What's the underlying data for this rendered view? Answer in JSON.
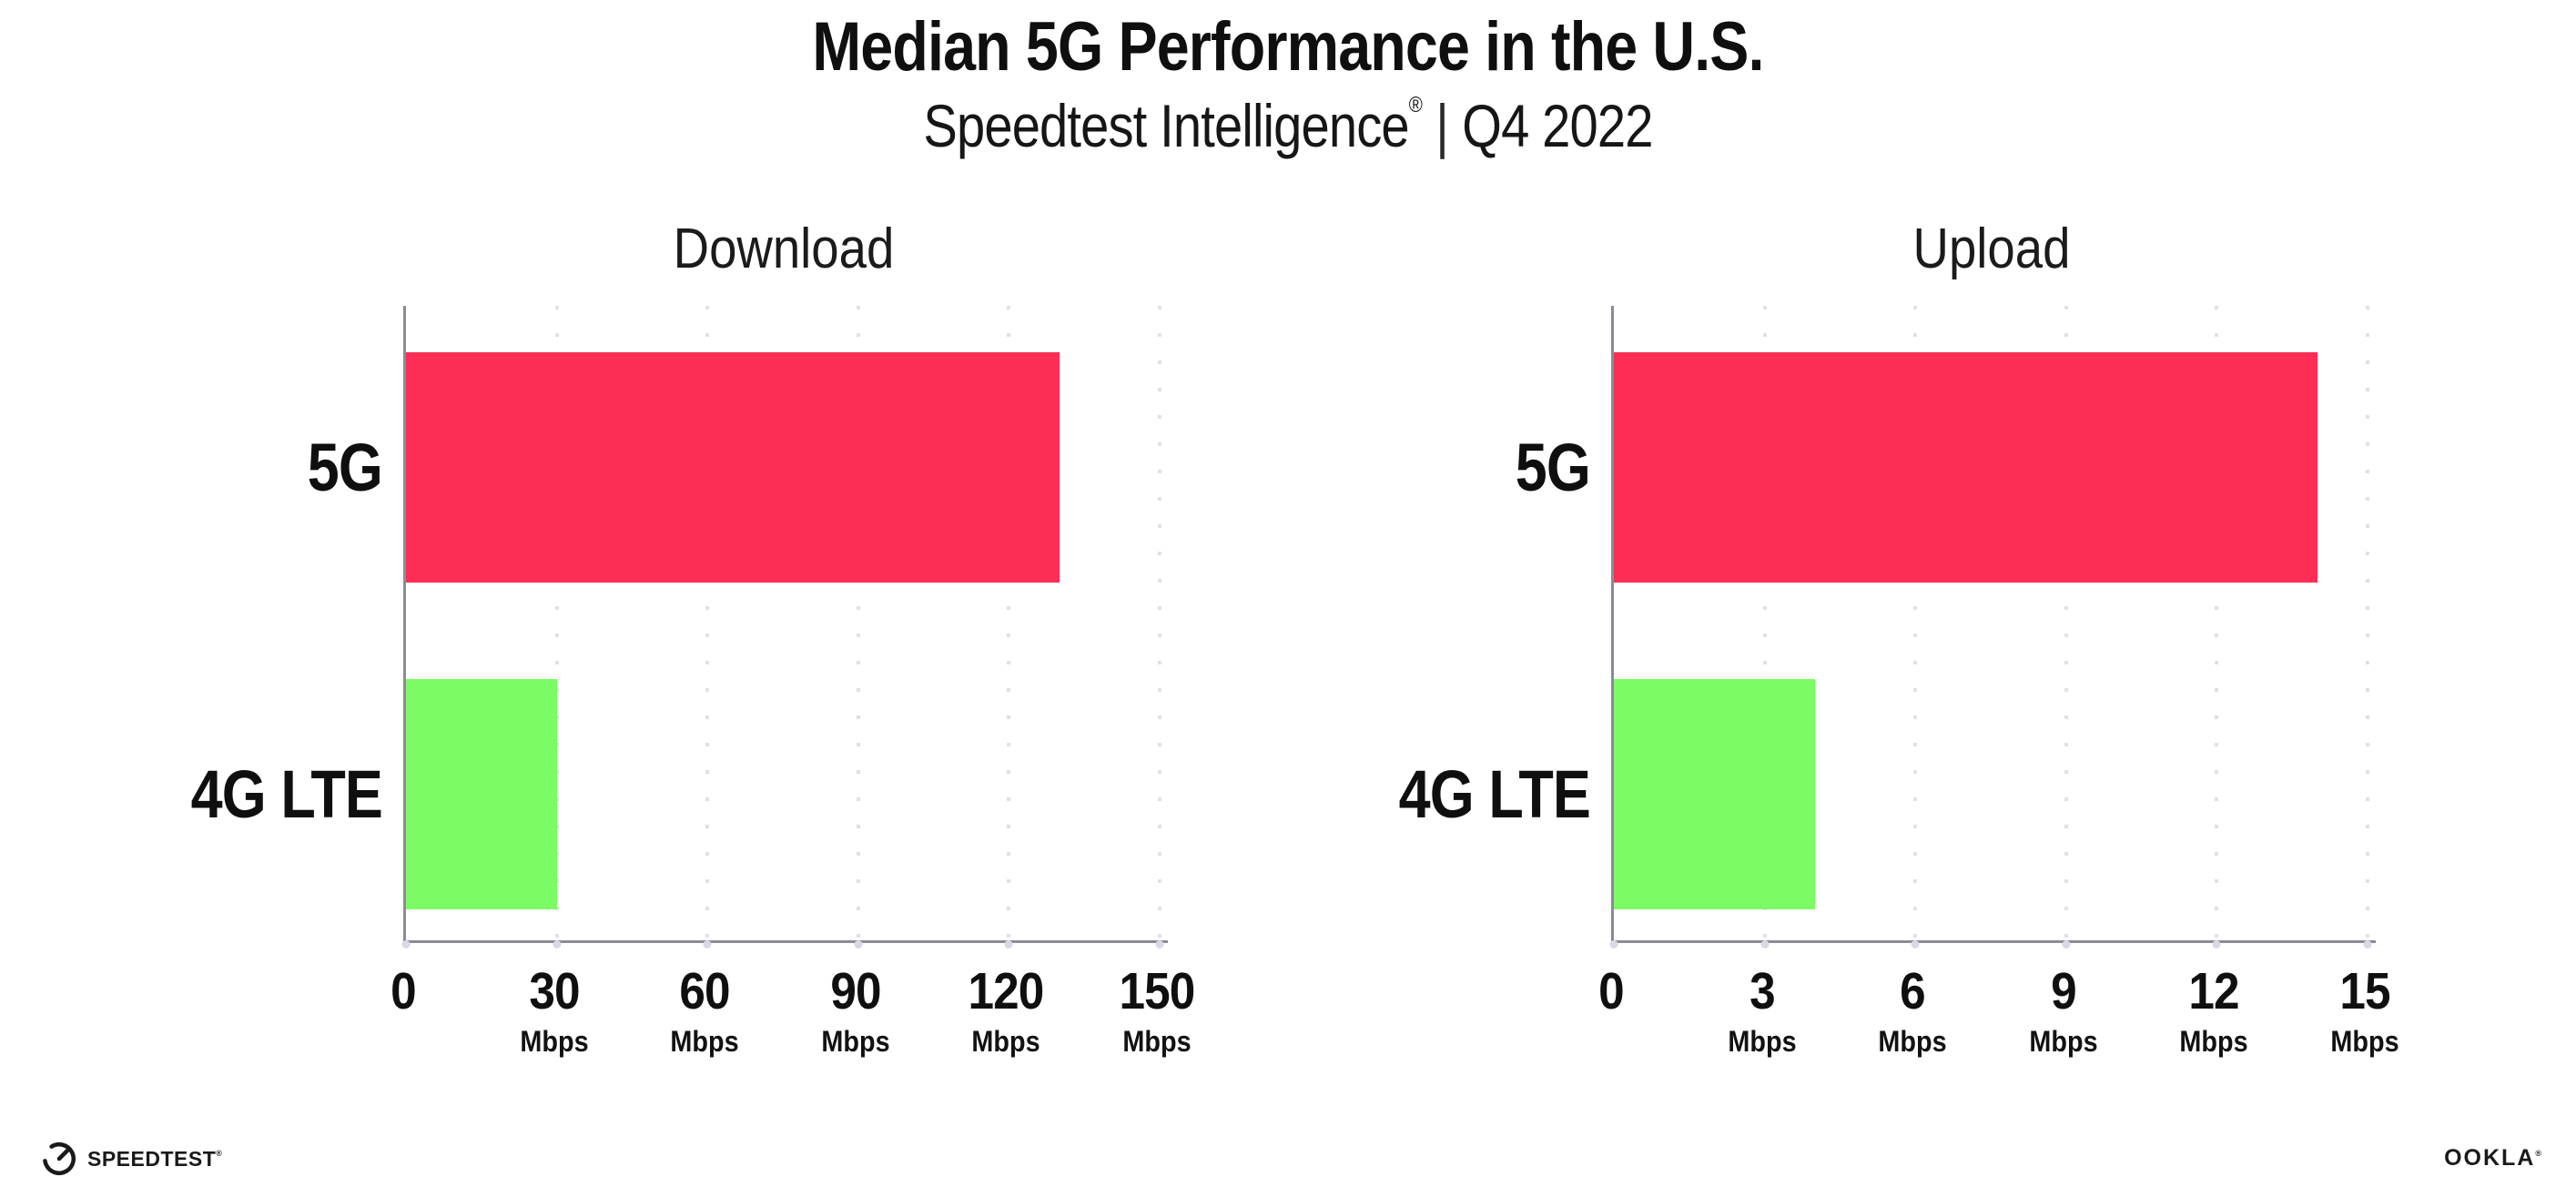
{
  "header": {
    "title": "Median 5G Performance in the U.S.",
    "subtitle_brand": "Speedtest Intelligence",
    "subtitle_reg": "®",
    "subtitle_sep": "|",
    "subtitle_period": "Q4 2022"
  },
  "chart_data": [
    {
      "type": "bar",
      "orientation": "horizontal",
      "title": "Download",
      "categories": [
        "5G",
        "4G LTE"
      ],
      "values": [
        130,
        30
      ],
      "unit": "Mbps",
      "xlabel": "Mbps",
      "xlim": [
        0,
        150
      ],
      "xticks": [
        "0",
        "30",
        "60",
        "90",
        "120",
        "150"
      ],
      "series_colors": [
        "#FD2D55",
        "#7DFB66"
      ],
      "grid": "vertical-dotted",
      "legend": "none"
    },
    {
      "type": "bar",
      "orientation": "horizontal",
      "title": "Upload",
      "categories": [
        "5G",
        "4G LTE"
      ],
      "values": [
        14,
        4
      ],
      "unit": "Mbps",
      "xlabel": "Mbps",
      "xlim": [
        0,
        15
      ],
      "xticks": [
        "0",
        "3",
        "6",
        "9",
        "12",
        "15"
      ],
      "series_colors": [
        "#FD2D55",
        "#7DFB66"
      ],
      "grid": "vertical-dotted",
      "legend": "none"
    }
  ],
  "footer": {
    "speedtest_label": "SPEEDTEST",
    "speedtest_reg": "®",
    "ookla_label": "OOKLA",
    "ookla_reg": "®"
  },
  "colors": {
    "bar_5g": "#FD2D55",
    "bar_4g_lte": "#7DFB66",
    "axis": "#8B8B95",
    "gridline": "#E0E0EA",
    "text": "#0F0F10"
  }
}
